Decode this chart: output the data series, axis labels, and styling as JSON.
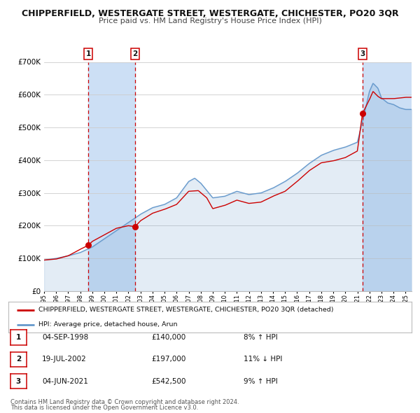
{
  "title": "CHIPPERFIELD, WESTERGATE STREET, WESTERGATE, CHICHESTER, PO20 3QR",
  "subtitle": "Price paid vs. HM Land Registry's House Price Index (HPI)",
  "legend_label_red": "CHIPPERFIELD, WESTERGATE STREET, WESTERGATE, CHICHESTER, PO20 3QR (detached)",
  "legend_label_blue": "HPI: Average price, detached house, Arun",
  "footer1": "Contains HM Land Registry data © Crown copyright and database right 2024.",
  "footer2": "This data is licensed under the Open Government Licence v3.0.",
  "sales": [
    {
      "num": 1,
      "date": "04-SEP-1998",
      "price": 140000,
      "pct": "8%",
      "dir": "↑",
      "x": 1998.67
    },
    {
      "num": 2,
      "date": "19-JUL-2002",
      "price": 197000,
      "pct": "11%",
      "dir": "↓",
      "x": 2002.54
    },
    {
      "num": 3,
      "date": "04-JUN-2021",
      "price": 542500,
      "pct": "9%",
      "dir": "↑",
      "x": 2021.42
    }
  ],
  "ylim": [
    0,
    700000
  ],
  "xlim_start": 1995,
  "xlim_end": 2025.5,
  "red_color": "#cc0000",
  "blue_color": "#6699cc",
  "shade_color": "#ccdff5",
  "grid_color": "#cccccc",
  "bg_color": "#ffffff",
  "sale_box_color": "#cc0000",
  "hpi_key_x": [
    1995,
    1996,
    1997,
    1998,
    1999,
    2000,
    2001,
    2002,
    2003,
    2004,
    2005,
    2006,
    2007,
    2007.5,
    2008,
    2009,
    2010,
    2011,
    2012,
    2013,
    2014,
    2015,
    2016,
    2017,
    2018,
    2019,
    2020,
    2021,
    2021.5,
    2022,
    2022.3,
    2022.7,
    2023,
    2023.5,
    2024,
    2024.5,
    2025
  ],
  "hpi_key_y": [
    95000,
    100000,
    108000,
    118000,
    135000,
    160000,
    185000,
    210000,
    235000,
    255000,
    265000,
    285000,
    335000,
    345000,
    330000,
    285000,
    290000,
    305000,
    295000,
    300000,
    315000,
    335000,
    360000,
    390000,
    415000,
    430000,
    440000,
    455000,
    530000,
    610000,
    635000,
    620000,
    590000,
    575000,
    570000,
    560000,
    555000
  ],
  "red_key_x": [
    1995,
    1996,
    1997,
    1998,
    1998.67,
    1999,
    2000,
    2001,
    2002,
    2002.54,
    2003,
    2004,
    2005,
    2006,
    2007,
    2007.8,
    2008.5,
    2009,
    2010,
    2011,
    2012,
    2013,
    2014,
    2015,
    2016,
    2017,
    2018,
    2019,
    2020,
    2021,
    2021.42,
    2022,
    2022.3,
    2022.7,
    2023,
    2024,
    2025
  ],
  "red_key_y": [
    95000,
    98000,
    108000,
    128000,
    140000,
    152000,
    172000,
    192000,
    200000,
    197000,
    215000,
    238000,
    250000,
    265000,
    305000,
    307000,
    285000,
    252000,
    262000,
    278000,
    268000,
    272000,
    290000,
    305000,
    335000,
    368000,
    392000,
    398000,
    408000,
    428000,
    542500,
    585000,
    610000,
    595000,
    588000,
    588000,
    592000
  ]
}
